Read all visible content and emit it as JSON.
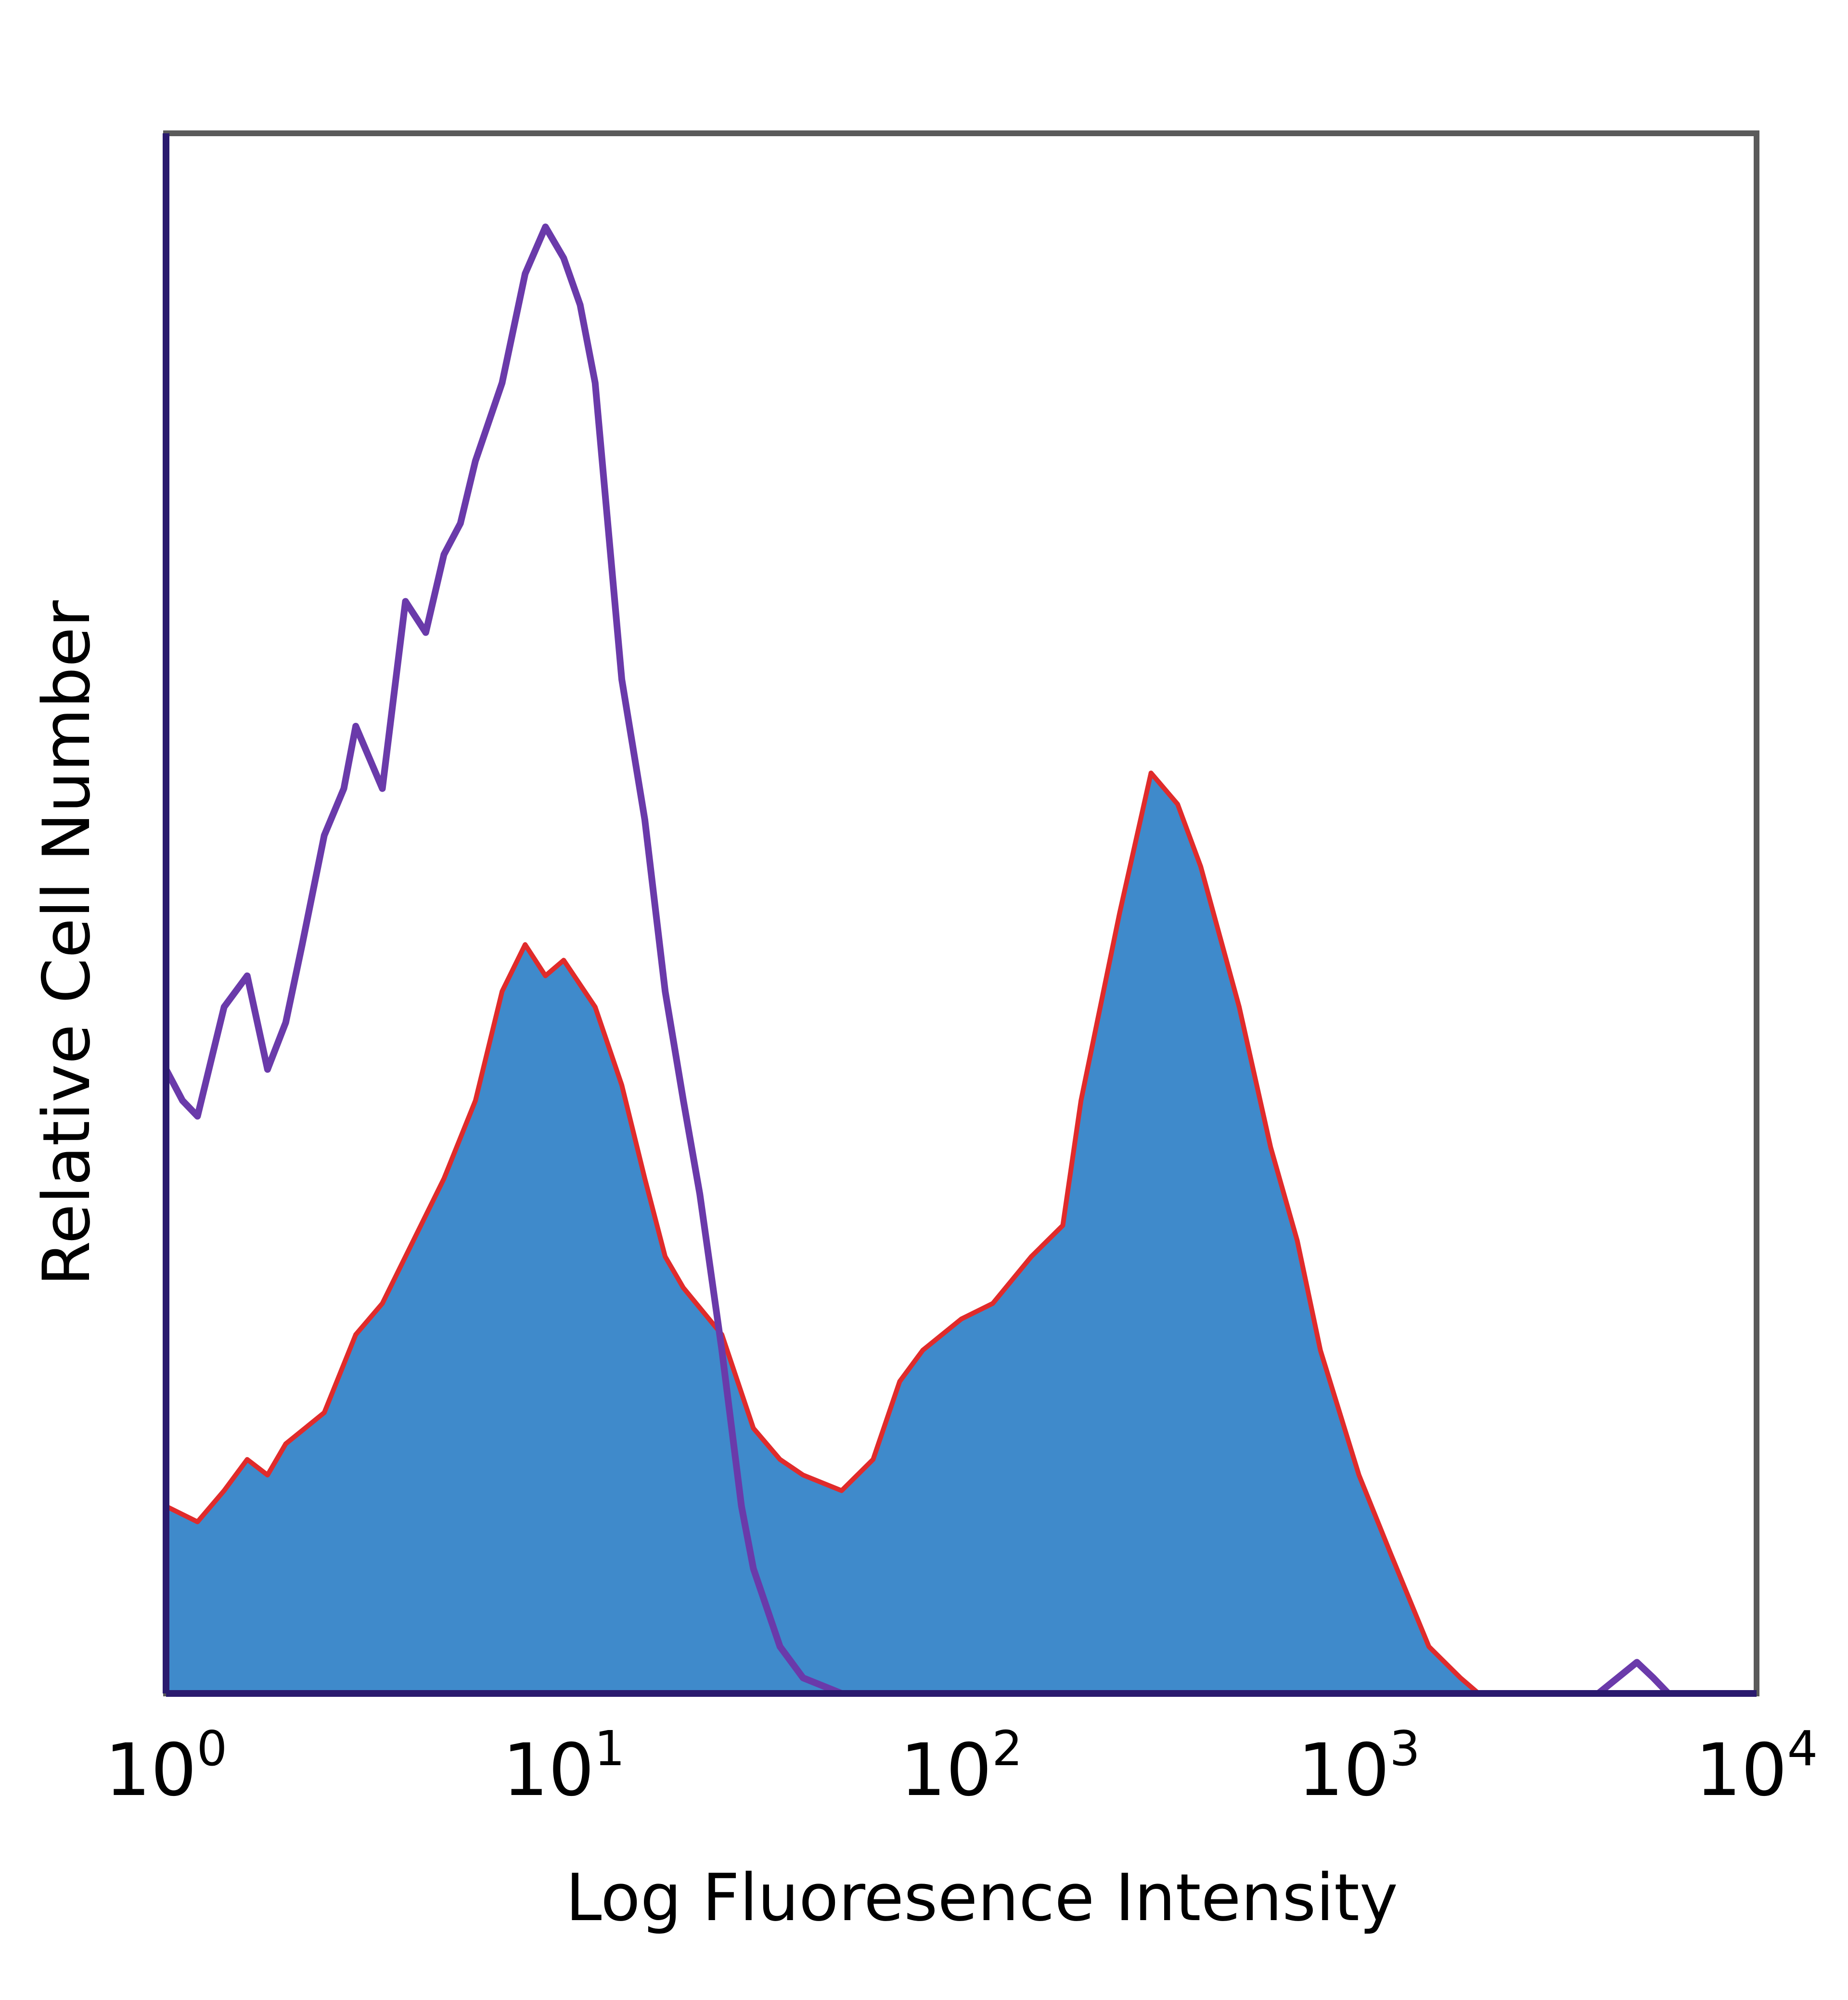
{
  "chart_data": {
    "type": "histogram",
    "xlabel": "Log Fluoresence Intensity",
    "ylabel": "Relative Cell Number",
    "x_scale": "log",
    "xlim": [
      1,
      10000
    ],
    "ylim": [
      0,
      100
    ],
    "grid": false,
    "legend": "none",
    "x_ticks": [
      {
        "base": "10",
        "exp": "0",
        "value": 1
      },
      {
        "base": "10",
        "exp": "1",
        "value": 10
      },
      {
        "base": "10",
        "exp": "2",
        "value": 100
      },
      {
        "base": "10",
        "exp": "3",
        "value": 1000
      },
      {
        "base": "10",
        "exp": "4",
        "value": 10000
      }
    ],
    "series": [
      {
        "style": "filled",
        "fill_color": "#3f8acb",
        "edge_color": "#e02b2b",
        "x": [
          1.0,
          1.2,
          1.4,
          1.6,
          1.8,
          2.0,
          2.5,
          3.0,
          3.5,
          4.0,
          5.0,
          6.0,
          7.0,
          8.0,
          9.0,
          10.0,
          12.0,
          14.0,
          16.0,
          18.0,
          20.0,
          25.0,
          30.0,
          35.0,
          40.0,
          50.0,
          60.0,
          70.0,
          80.0,
          100.0,
          120.0,
          150.0,
          180.0,
          200.0,
          250.0,
          300.0,
          350.0,
          400.0,
          500.0,
          600.0,
          700.0,
          800.0,
          1000.0,
          1200.0,
          1500.0,
          1800.0,
          2000.0,
          3000.0,
          5000.0,
          10000.0
        ],
        "y": [
          12,
          11,
          13,
          15,
          14,
          16,
          18,
          23,
          25,
          28,
          33,
          38,
          45,
          48,
          46,
          47,
          44,
          39,
          33,
          28,
          26,
          23,
          17,
          15,
          14,
          13,
          15,
          20,
          22,
          24,
          25,
          28,
          30,
          38,
          50,
          59,
          57,
          53,
          44,
          35,
          29,
          22,
          14,
          9,
          3,
          1,
          0,
          0,
          0,
          0
        ]
      },
      {
        "style": "outline",
        "line_color": "#6a3aaa",
        "x": [
          1.0,
          1.1,
          1.2,
          1.4,
          1.6,
          1.8,
          2.0,
          2.2,
          2.5,
          2.8,
          3.0,
          3.5,
          4.0,
          4.5,
          5.0,
          5.5,
          6.0,
          7.0,
          8.0,
          9.0,
          10.0,
          11.0,
          12.0,
          14.0,
          16.0,
          18.0,
          20.0,
          22.0,
          25.0,
          28.0,
          30.0,
          35.0,
          40.0,
          50.0,
          100.0,
          500.0,
          2000.0,
          4000.0,
          5000.0,
          5500.0,
          6000.0,
          10000.0
        ],
        "y": [
          40,
          38,
          37,
          44,
          46,
          40,
          43,
          48,
          55,
          58,
          62,
          58,
          70,
          68,
          73,
          75,
          79,
          84,
          91,
          94,
          92,
          89,
          84,
          65,
          56,
          45,
          38,
          32,
          22,
          12,
          8,
          3,
          1,
          0,
          0,
          0,
          0,
          0,
          2,
          1,
          0,
          0
        ]
      }
    ]
  }
}
